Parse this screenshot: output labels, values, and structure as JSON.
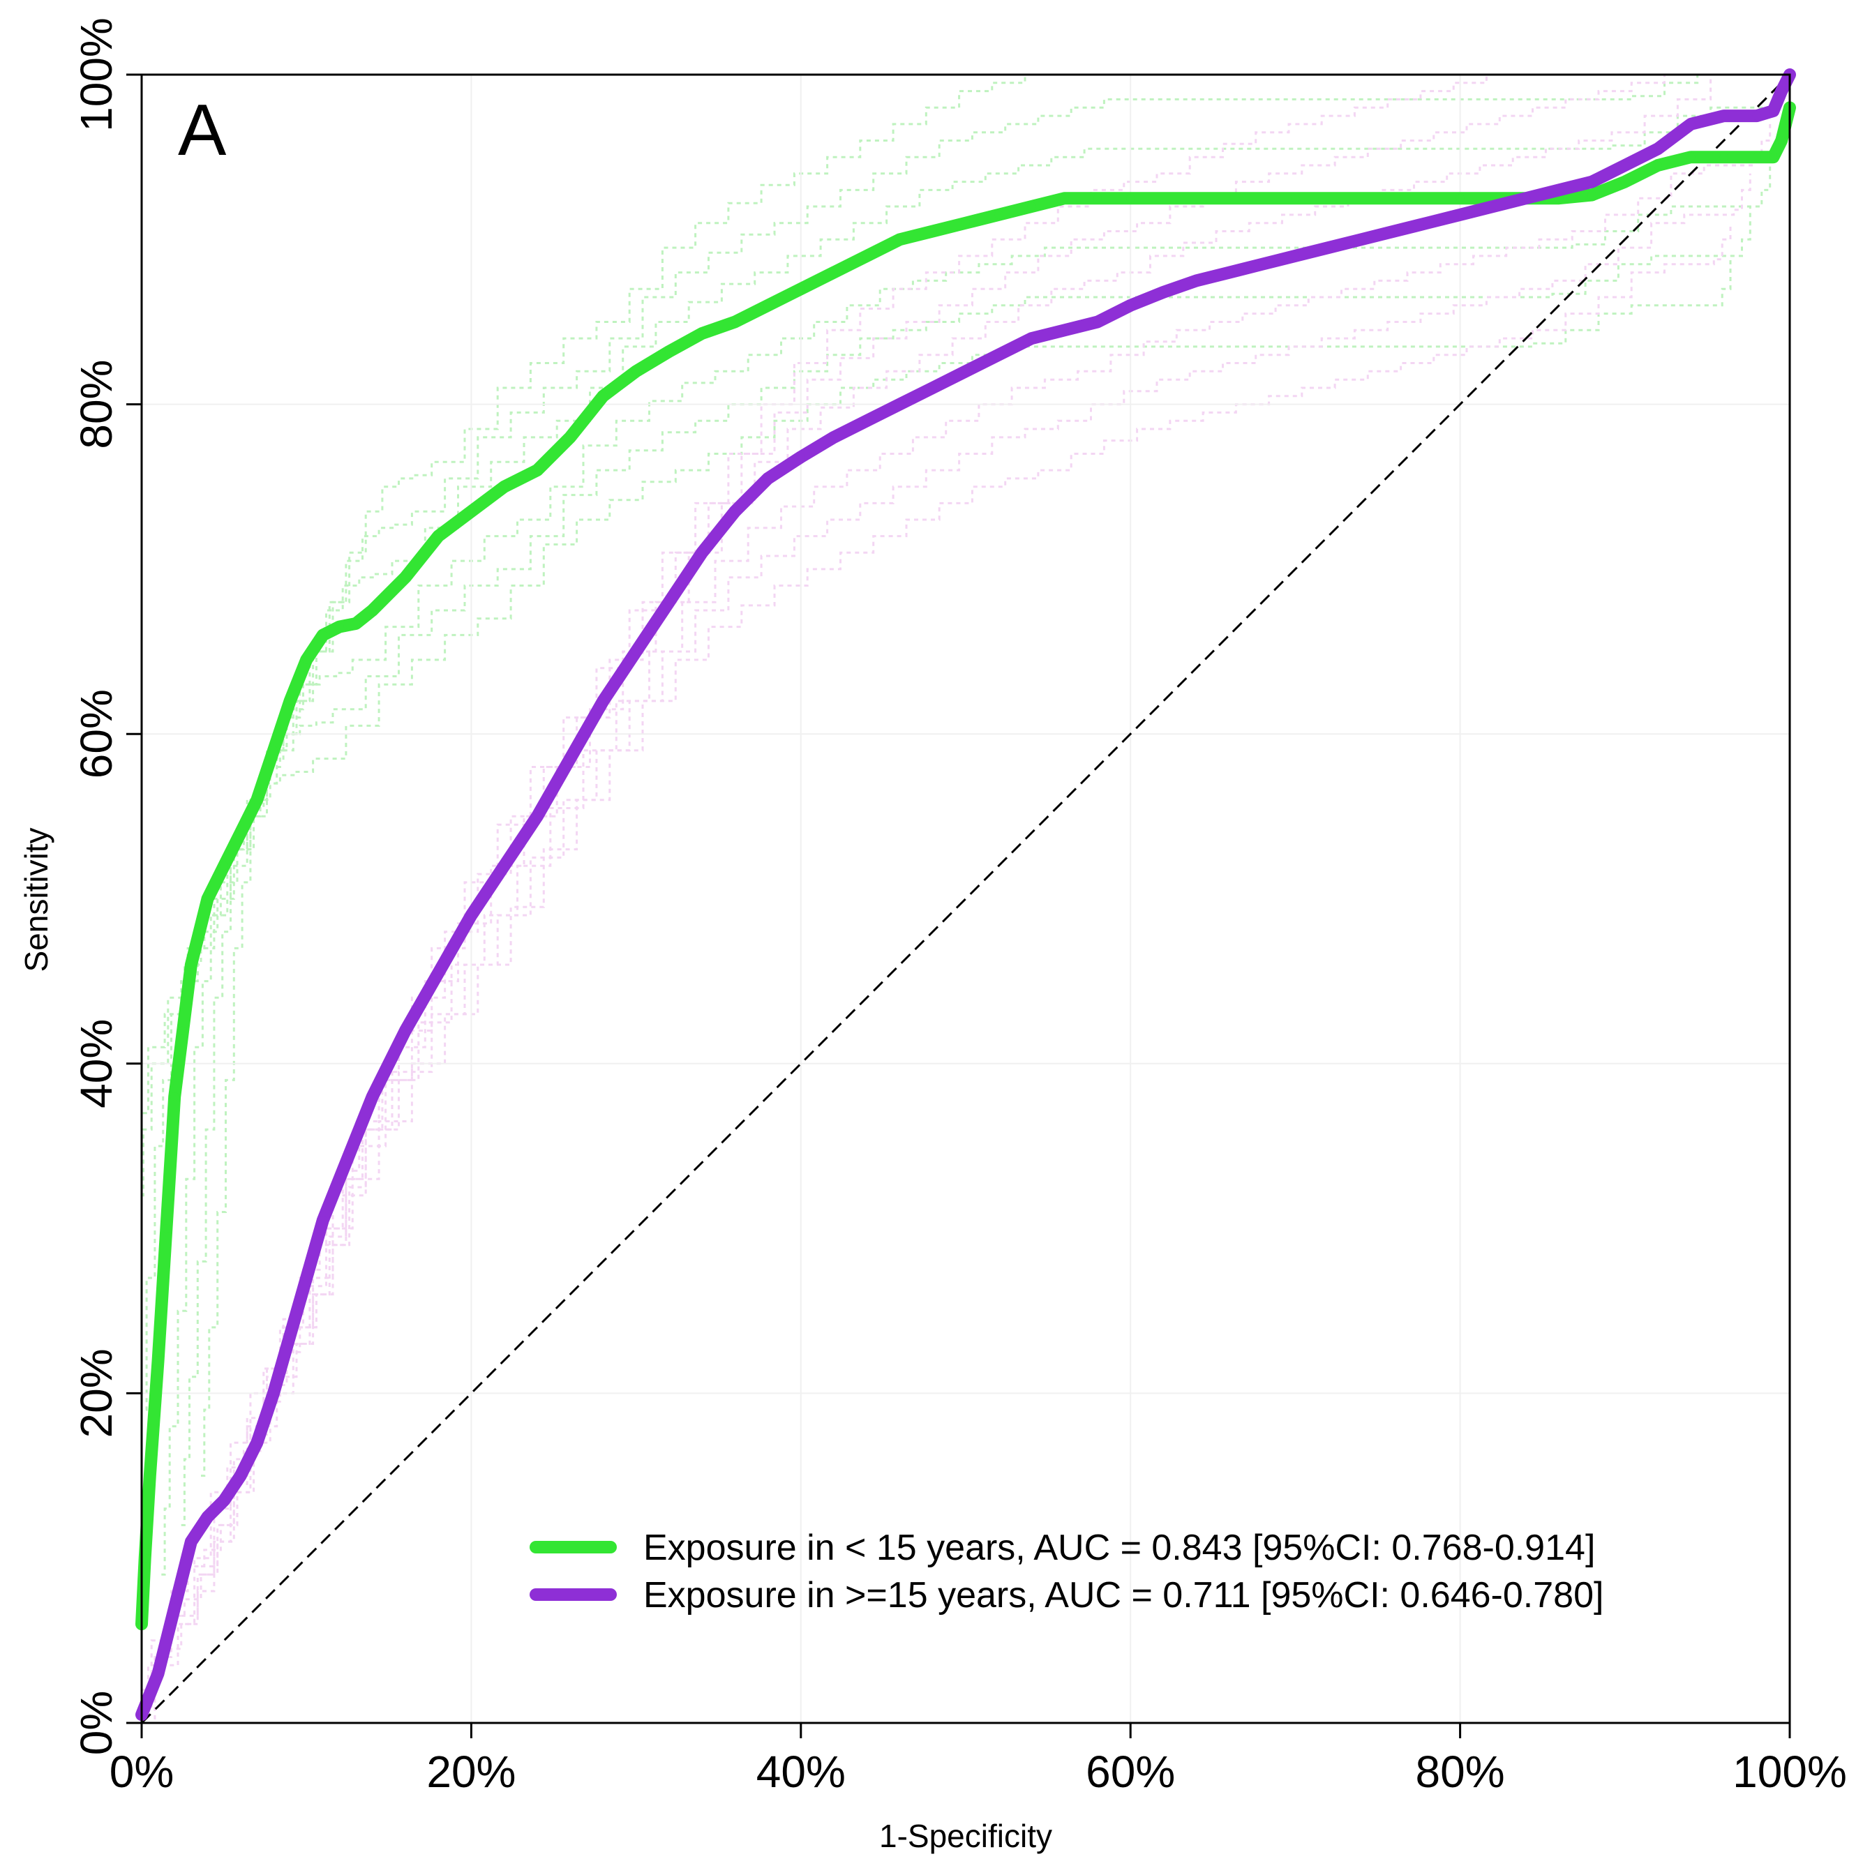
{
  "chart_data": {
    "type": "line",
    "panel_label": "A",
    "title": "",
    "xlabel": "1-Specificity",
    "ylabel": "Sensitivity",
    "xlim": [
      0,
      100
    ],
    "ylim": [
      0,
      100
    ],
    "xticks": [
      {
        "value": 0,
        "label": "0%"
      },
      {
        "value": 20,
        "label": "20%"
      },
      {
        "value": 40,
        "label": "40%"
      },
      {
        "value": 60,
        "label": "60%"
      },
      {
        "value": 80,
        "label": "80%"
      },
      {
        "value": 100,
        "label": "100%"
      }
    ],
    "yticks": [
      {
        "value": 0,
        "label": "0%"
      },
      {
        "value": 20,
        "label": "20%"
      },
      {
        "value": 40,
        "label": "40%"
      },
      {
        "value": 60,
        "label": "60%"
      },
      {
        "value": 80,
        "label": "80%"
      },
      {
        "value": 100,
        "label": "100%"
      }
    ],
    "grid": true,
    "legend_position": "bottom-right",
    "reference_line": {
      "style": "dashed",
      "color": "#000000",
      "x": [
        0,
        100
      ],
      "y": [
        0,
        100
      ]
    },
    "series": [
      {
        "name": "Exposure in < 15 years, AUC = 0.843 [95%CI: 0.768-0.914]",
        "color": "#33e533",
        "band_color": "#bff2bf",
        "x": [
          0,
          0.2,
          0.5,
          1,
          1.5,
          2,
          2.5,
          3,
          4,
          5,
          6,
          7,
          8,
          9,
          10,
          11,
          12,
          13,
          14,
          16,
          18,
          20,
          22,
          24,
          26,
          28,
          30,
          32,
          34,
          36,
          38,
          40,
          42,
          44,
          46,
          48,
          50,
          52,
          54,
          56,
          58,
          60,
          70,
          80,
          86,
          88,
          90,
          92,
          94,
          96,
          98,
          99,
          99.5,
          100
        ],
        "y": [
          6,
          10,
          15,
          22,
          30,
          38,
          42,
          46,
          50,
          52,
          54,
          56,
          59,
          62,
          64.5,
          66,
          66.5,
          66.7,
          67.5,
          69.5,
          72,
          73.5,
          75,
          76,
          78,
          80.5,
          82,
          83.2,
          84.3,
          85,
          86,
          87,
          88,
          89,
          90,
          90.5,
          91,
          91.5,
          92,
          92.5,
          92.5,
          92.5,
          92.5,
          92.5,
          92.5,
          92.7,
          93.5,
          94.5,
          95,
          95,
          95,
          95,
          96,
          98
        ]
      },
      {
        "name": "Exposure in >=15 years, AUC = 0.711 [95%CI: 0.646-0.780]",
        "color": "#8e2fd6",
        "band_color": "#f3d6f3",
        "x": [
          0,
          1,
          2,
          3,
          4,
          5,
          6,
          7,
          8,
          9,
          10,
          11,
          12,
          14,
          16,
          18,
          20,
          22,
          24,
          26,
          28,
          30,
          32,
          34,
          36,
          38,
          40,
          42,
          44,
          46,
          48,
          50,
          52,
          54,
          56,
          58,
          60,
          62,
          64,
          66,
          68,
          70,
          72,
          74,
          76,
          78,
          80,
          82,
          84,
          86,
          88,
          90,
          92,
          94,
          96,
          98,
          99,
          99.5,
          100
        ],
        "y": [
          0.5,
          3,
          7,
          11,
          12.5,
          13.5,
          15,
          17,
          20,
          23.5,
          27,
          30.5,
          33,
          38,
          42,
          45.5,
          49,
          52,
          55,
          58.5,
          62,
          65,
          68,
          71,
          73.5,
          75.5,
          76.8,
          78,
          79,
          80,
          81,
          82,
          83,
          84,
          84.5,
          85,
          86,
          86.8,
          87.5,
          88,
          88.5,
          89,
          89.5,
          90,
          90.5,
          91,
          91.5,
          92,
          92.5,
          93,
          93.5,
          94.5,
          95.5,
          97,
          97.5,
          97.5,
          97.8,
          99,
          100
        ]
      }
    ]
  }
}
